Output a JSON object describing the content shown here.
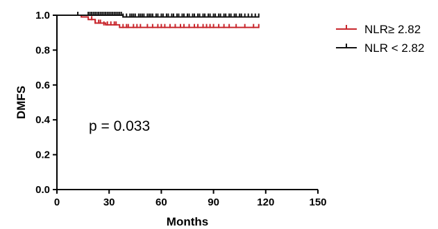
{
  "chart_data": {
    "type": "line",
    "xlabel": "Months",
    "ylabel": "DMFS",
    "xlim": [
      0,
      150
    ],
    "ylim": [
      0,
      1.0
    ],
    "x_ticks": [
      "0",
      "30",
      "60",
      "90",
      "120",
      "150"
    ],
    "y_ticks": [
      "0.0",
      "0.2",
      "0.4",
      "0.6",
      "0.8",
      "1.0"
    ],
    "annotation": "p = 0.033",
    "legend_position": "top-right",
    "series": [
      {
        "name": "NLR≥  2.82",
        "color": "#c8262c",
        "step_x": [
          0,
          14,
          18,
          22,
          28,
          36,
          116
        ],
        "step_y": [
          1.0,
          0.99,
          0.975,
          0.955,
          0.945,
          0.93,
          0.93
        ],
        "censor_x": [
          20,
          22,
          24,
          25,
          27,
          29,
          31,
          33,
          34,
          38,
          40,
          41,
          44,
          46,
          48,
          52,
          55,
          58,
          60,
          62,
          65,
          68,
          71,
          73,
          76,
          79,
          81,
          84,
          86,
          88,
          90,
          93,
          96,
          99,
          103,
          108,
          113,
          116
        ],
        "censor_y": [
          0.975,
          0.955,
          0.955,
          0.955,
          0.945,
          0.945,
          0.945,
          0.945,
          0.945,
          0.93,
          0.93,
          0.93,
          0.93,
          0.93,
          0.93,
          0.93,
          0.93,
          0.93,
          0.93,
          0.93,
          0.93,
          0.93,
          0.93,
          0.93,
          0.93,
          0.93,
          0.93,
          0.93,
          0.93,
          0.93,
          0.93,
          0.93,
          0.93,
          0.93,
          0.93,
          0.93,
          0.93,
          0.93
        ]
      },
      {
        "name": "NLR < 2.82",
        "color": "#111111",
        "step_x": [
          0,
          38,
          116
        ],
        "step_y": [
          1.0,
          0.99,
          0.99
        ],
        "censor_x": [
          12,
          18,
          19,
          20,
          21,
          22,
          23,
          24,
          25,
          26,
          27,
          28,
          29,
          30,
          31,
          32,
          33,
          34,
          35,
          36,
          37,
          38,
          40,
          42,
          43,
          44,
          45,
          47,
          48,
          49,
          50,
          52,
          53,
          54,
          55,
          57,
          58,
          60,
          61,
          63,
          64,
          66,
          67,
          69,
          70,
          72,
          73,
          75,
          76,
          78,
          79,
          81,
          82,
          84,
          85,
          87,
          88,
          90,
          91,
          93,
          94,
          96,
          97,
          99,
          100,
          102,
          103,
          105,
          106,
          108,
          110,
          112,
          114,
          116
        ],
        "censor_y": [
          1.0,
          1.0,
          1.0,
          1.0,
          1.0,
          1.0,
          1.0,
          1.0,
          1.0,
          1.0,
          1.0,
          1.0,
          1.0,
          1.0,
          1.0,
          1.0,
          1.0,
          1.0,
          1.0,
          1.0,
          1.0,
          0.99,
          0.99,
          0.99,
          0.99,
          0.99,
          0.99,
          0.99,
          0.99,
          0.99,
          0.99,
          0.99,
          0.99,
          0.99,
          0.99,
          0.99,
          0.99,
          0.99,
          0.99,
          0.99,
          0.99,
          0.99,
          0.99,
          0.99,
          0.99,
          0.99,
          0.99,
          0.99,
          0.99,
          0.99,
          0.99,
          0.99,
          0.99,
          0.99,
          0.99,
          0.99,
          0.99,
          0.99,
          0.99,
          0.99,
          0.99,
          0.99,
          0.99,
          0.99,
          0.99,
          0.99,
          0.99,
          0.99,
          0.99,
          0.99,
          0.99,
          0.99,
          0.99,
          0.99
        ]
      }
    ]
  }
}
